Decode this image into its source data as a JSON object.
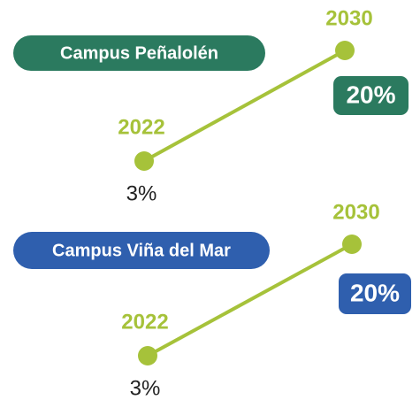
{
  "chart_data": [
    {
      "type": "line",
      "title": "Campus Peñalolén",
      "title_color": "#2b7a5f",
      "categories": [
        "2022",
        "2030"
      ],
      "values": [
        3,
        20
      ],
      "value_labels": [
        "3%",
        "20%"
      ],
      "color": "#a6c23a"
    },
    {
      "type": "line",
      "title": "Campus Viña del Mar",
      "title_color": "#2f5fae",
      "categories": [
        "2022",
        "2030"
      ],
      "values": [
        3,
        20
      ],
      "value_labels": [
        "3%",
        "20%"
      ],
      "color": "#a6c23a"
    }
  ]
}
